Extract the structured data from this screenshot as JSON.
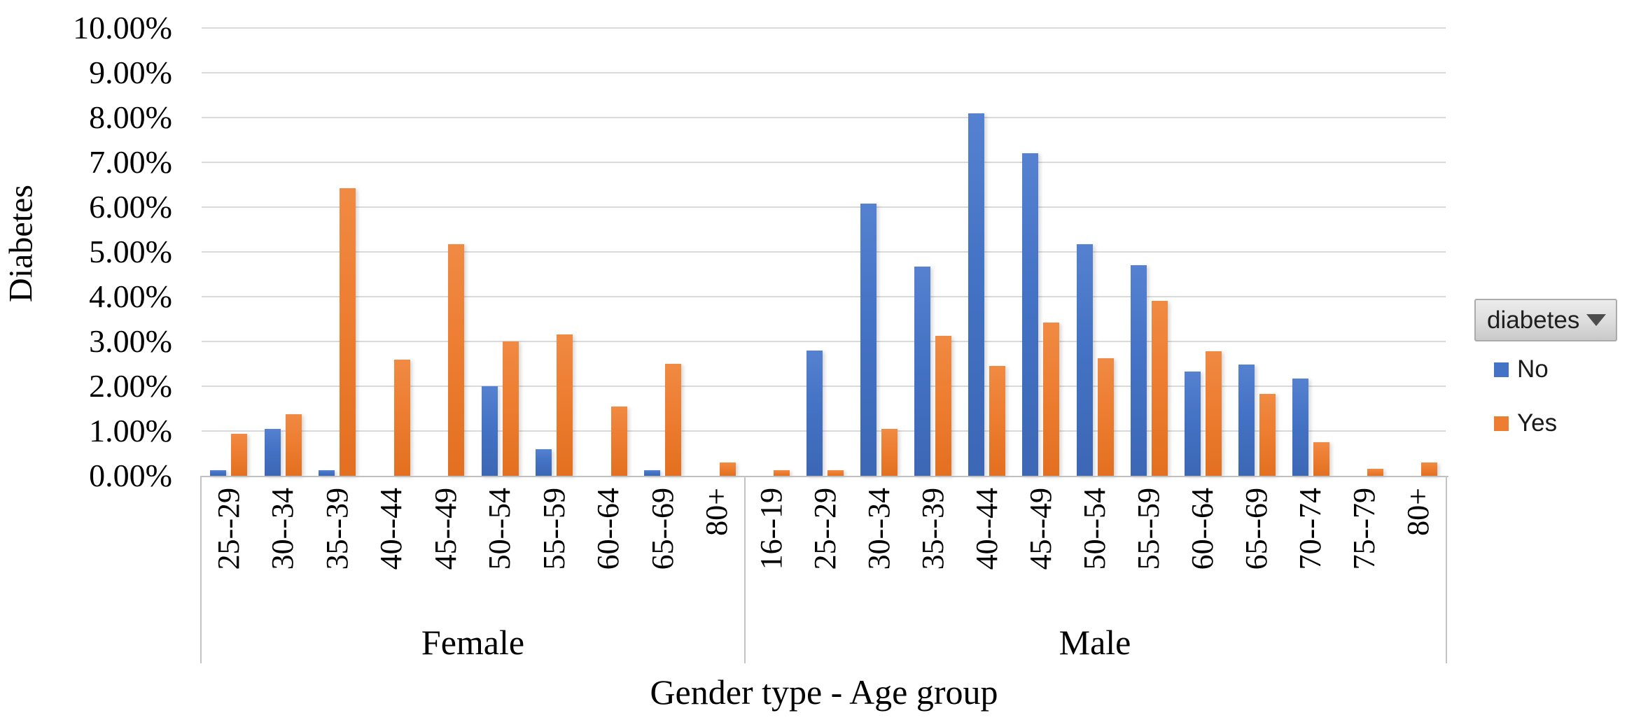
{
  "legend": {
    "field_button": {
      "label": "diabetes",
      "icon": "triangle-down-icon"
    }
  },
  "chart_data": {
    "type": "bar",
    "title": "",
    "ylabel": "Diabetes",
    "xlabel": "Gender type - Age group",
    "units": "percent",
    "ylim_percent": [
      0,
      10
    ],
    "ytick_step_percent": 1,
    "ytick_labels": [
      "0.00%",
      "1.00%",
      "2.00%",
      "3.00%",
      "4.00%",
      "5.00%",
      "6.00%",
      "7.00%",
      "8.00%",
      "9.00%",
      "10.00%"
    ],
    "grid": true,
    "legend_position": "right",
    "series_field": "diabetes",
    "series_names": [
      "No",
      "Yes"
    ],
    "series_colors": {
      "No": "#4472C4",
      "Yes": "#ED7D31"
    },
    "sections": [
      {
        "label": "Female",
        "categories": [
          "25--29",
          "30--34",
          "35--39",
          "40--44",
          "45--49",
          "50--54",
          "55--59",
          "60--64",
          "65--69",
          "80+"
        ],
        "series": [
          {
            "name": "No",
            "values": [
              0.12,
              1.05,
              0.13,
              0,
              0,
              2.0,
              0.6,
              0,
              0.13,
              0
            ]
          },
          {
            "name": "Yes",
            "values": [
              0.93,
              1.38,
              6.42,
              2.6,
              5.17,
              3.0,
              3.15,
              1.55,
              2.5,
              0.3
            ]
          }
        ]
      },
      {
        "label": "Male",
        "categories": [
          "16--19",
          "25--29",
          "30--34",
          "35--39",
          "40--44",
          "45--49",
          "50--54",
          "55--59",
          "60--64",
          "65--69",
          "70--74",
          "75--79",
          "80+"
        ],
        "series": [
          {
            "name": "No",
            "values": [
              0,
              2.8,
              6.08,
              4.67,
              8.1,
              7.2,
              5.17,
              4.7,
              2.33,
              2.48,
              2.17,
              0,
              0
            ]
          },
          {
            "name": "Yes",
            "values": [
              0.13,
              0.13,
              1.05,
              3.13,
              2.45,
              3.42,
              2.63,
              3.9,
              2.78,
              1.83,
              0.75,
              0.15,
              0.3
            ]
          }
        ]
      }
    ]
  }
}
